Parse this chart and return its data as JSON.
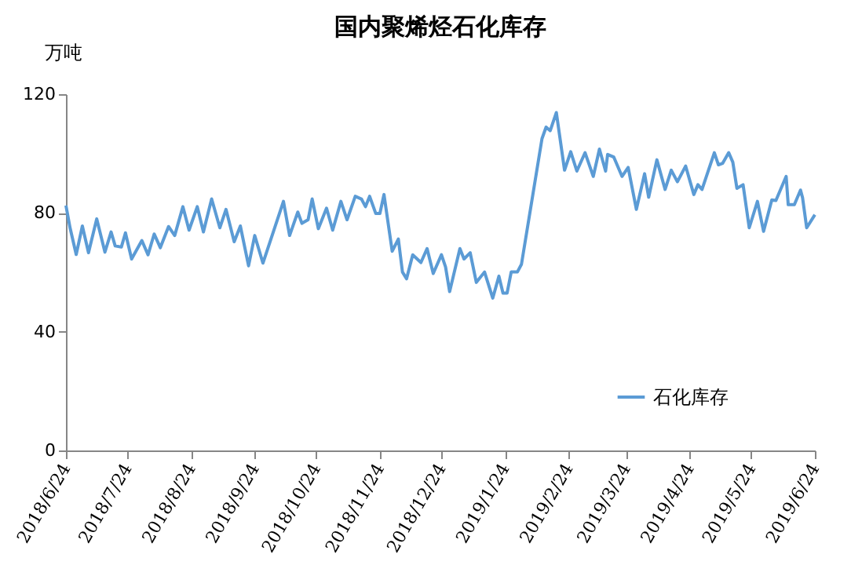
{
  "chart_data": {
    "type": "line",
    "title": "国内聚烯烃石化库存",
    "ylabel": "万吨",
    "x": [
      "2018-06-24",
      "2018-06-26",
      "2018-06-29",
      "2018-07-02",
      "2018-07-05",
      "2018-07-09",
      "2018-07-13",
      "2018-07-16",
      "2018-07-18",
      "2018-07-21",
      "2018-07-23",
      "2018-07-26",
      "2018-07-31",
      "2018-08-03",
      "2018-08-06",
      "2018-08-09",
      "2018-08-13",
      "2018-08-16",
      "2018-08-20",
      "2018-08-23",
      "2018-08-27",
      "2018-08-30",
      "2018-09-03",
      "2018-09-07",
      "2018-09-10",
      "2018-09-14",
      "2018-09-17",
      "2018-09-21",
      "2018-09-24",
      "2018-09-28",
      "2018-10-08",
      "2018-10-11",
      "2018-10-15",
      "2018-10-17",
      "2018-10-20",
      "2018-10-22",
      "2018-10-25",
      "2018-10-29",
      "2018-11-01",
      "2018-11-05",
      "2018-11-08",
      "2018-11-12",
      "2018-11-15",
      "2018-11-17",
      "2018-11-19",
      "2018-11-22",
      "2018-11-24",
      "2018-11-26",
      "2018-11-30",
      "2018-12-03",
      "2018-12-05",
      "2018-12-07",
      "2018-12-10",
      "2018-12-14",
      "2018-12-17",
      "2018-12-20",
      "2018-12-24",
      "2018-12-26",
      "2018-12-28",
      "2019-01-02",
      "2019-01-04",
      "2019-01-07",
      "2019-01-10",
      "2019-01-14",
      "2019-01-18",
      "2019-01-21",
      "2019-01-23",
      "2019-01-25",
      "2019-01-27",
      "2019-01-30",
      "2019-02-01",
      "2019-02-11",
      "2019-02-13",
      "2019-02-15",
      "2019-02-18",
      "2019-02-22",
      "2019-02-25",
      "2019-02-28",
      "2019-03-04",
      "2019-03-08",
      "2019-03-11",
      "2019-03-14",
      "2019-03-15",
      "2019-03-18",
      "2019-03-22",
      "2019-03-25",
      "2019-03-29",
      "2019-04-02",
      "2019-04-04",
      "2019-04-08",
      "2019-04-12",
      "2019-04-15",
      "2019-04-18",
      "2019-04-22",
      "2019-04-26",
      "2019-04-28",
      "2019-04-30",
      "2019-05-06",
      "2019-05-08",
      "2019-05-10",
      "2019-05-13",
      "2019-05-15",
      "2019-05-17",
      "2019-05-20",
      "2019-05-23",
      "2019-05-27",
      "2019-05-30",
      "2019-06-03",
      "2019-06-05",
      "2019-06-10",
      "2019-06-11",
      "2019-06-14",
      "2019-06-17",
      "2019-06-18",
      "2019-06-20",
      "2019-06-24"
    ],
    "series": [
      {
        "name": "石化库存",
        "color": "#5b9bd5",
        "values": [
          82.5,
          75,
          66,
          75.6,
          66.6,
          78,
          66.8,
          73.6,
          68.9,
          68.5,
          73.3,
          64.5,
          70.7,
          65.9,
          72.9,
          68.3,
          75.4,
          72.4,
          82.1,
          74.2,
          82.1,
          73.6,
          84.7,
          75,
          81.2,
          70.3,
          75.6,
          62.2,
          72.4,
          63.1,
          83.9,
          72.4,
          80.3,
          76.5,
          77.7,
          84.7,
          74.7,
          81.6,
          74.2,
          83.9,
          77.7,
          85.6,
          84.7,
          82.1,
          85.6,
          79.8,
          79.8,
          86.2,
          67.1,
          71.2,
          60.1,
          57.8,
          65.9,
          63.3,
          68,
          59.6,
          65.9,
          61.8,
          53.5,
          68,
          64.5,
          66.6,
          56.6,
          60.1,
          51.3,
          58.7,
          53,
          53,
          60.1,
          60.1,
          62.7,
          105,
          108.9,
          107.7,
          113.8,
          94.4,
          100.6,
          94.1,
          100.3,
          92.3,
          101.5,
          94.1,
          99.7,
          98.8,
          92.3,
          95.3,
          81.2,
          93.2,
          85.3,
          97.9,
          87.9,
          94.4,
          90.5,
          95.8,
          86.2,
          89.5,
          87.9,
          100.3,
          96.2,
          96.7,
          100.3,
          97.1,
          88.3,
          89.5,
          75,
          83.9,
          73.8,
          84.4,
          84.2,
          92.3,
          82.8,
          82.8,
          87.7,
          85.1,
          75,
          79.4
        ]
      }
    ],
    "xlim": [
      "2018-06-24",
      "2019-06-24"
    ],
    "xticks": [
      {
        "value": "2018-06-24",
        "label": "2018/6/24"
      },
      {
        "value": "2018-07-24",
        "label": "2018/7/24"
      },
      {
        "value": "2018-08-24",
        "label": "2018/8/24"
      },
      {
        "value": "2018-09-24",
        "label": "2018/9/24"
      },
      {
        "value": "2018-10-24",
        "label": "2018/10/24"
      },
      {
        "value": "2018-11-24",
        "label": "2018/11/24"
      },
      {
        "value": "2018-12-24",
        "label": "2018/12/24"
      },
      {
        "value": "2019-01-24",
        "label": "2019/1/24"
      },
      {
        "value": "2019-02-24",
        "label": "2019/2/24"
      },
      {
        "value": "2019-03-24",
        "label": "2019/3/24"
      },
      {
        "value": "2019-04-24",
        "label": "2019/4/24"
      },
      {
        "value": "2019-05-24",
        "label": "2019/5/24"
      },
      {
        "value": "2019-06-24",
        "label": "2019/6/24"
      }
    ],
    "ylim": [
      0,
      120
    ],
    "yticks": [
      0,
      40,
      80,
      120
    ],
    "legend": "bottom right"
  }
}
